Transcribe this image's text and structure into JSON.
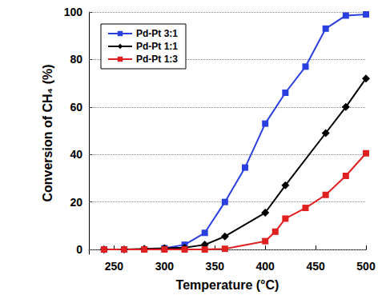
{
  "chart_data": {
    "type": "line",
    "x_label": "Temperature (°C)",
    "y_label": "Conversion of CH₄ (%)",
    "xlim": [
      225,
      500
    ],
    "xticks": [
      250,
      300,
      350,
      400,
      450,
      500
    ],
    "ylim": [
      -2,
      100
    ],
    "yticks": [
      0,
      20,
      40,
      60,
      80,
      100
    ],
    "grid": true,
    "legend": "upper left",
    "series": [
      {
        "name": "Pd-Pt 3:1",
        "color": "#2a3fe0",
        "marker": "square",
        "x": [
          240,
          260,
          280,
          300,
          320,
          340,
          360,
          380,
          400,
          420,
          440,
          460,
          480,
          500
        ],
        "values": [
          0,
          0,
          0,
          0.5,
          2,
          7,
          20,
          34.5,
          53,
          66,
          77,
          93,
          98.5,
          99
        ]
      },
      {
        "name": "Pd-Pt 1:1",
        "color": "#000000",
        "marker": "diamond",
        "x": [
          240,
          260,
          280,
          300,
          320,
          340,
          360,
          400,
          420,
          460,
          480,
          500
        ],
        "values": [
          0,
          0,
          0.3,
          0.5,
          0.8,
          2,
          5.5,
          15.5,
          27,
          49,
          60,
          72
        ]
      },
      {
        "name": "Pd-Pt 1:3",
        "color": "#e02020",
        "marker": "square",
        "x": [
          240,
          260,
          280,
          300,
          320,
          340,
          360,
          400,
          410,
          420,
          440,
          460,
          480,
          500
        ],
        "values": [
          0,
          0,
          0,
          0,
          0,
          0,
          0.3,
          3.5,
          7.5,
          13,
          17.5,
          23,
          31,
          40.5
        ]
      }
    ]
  }
}
